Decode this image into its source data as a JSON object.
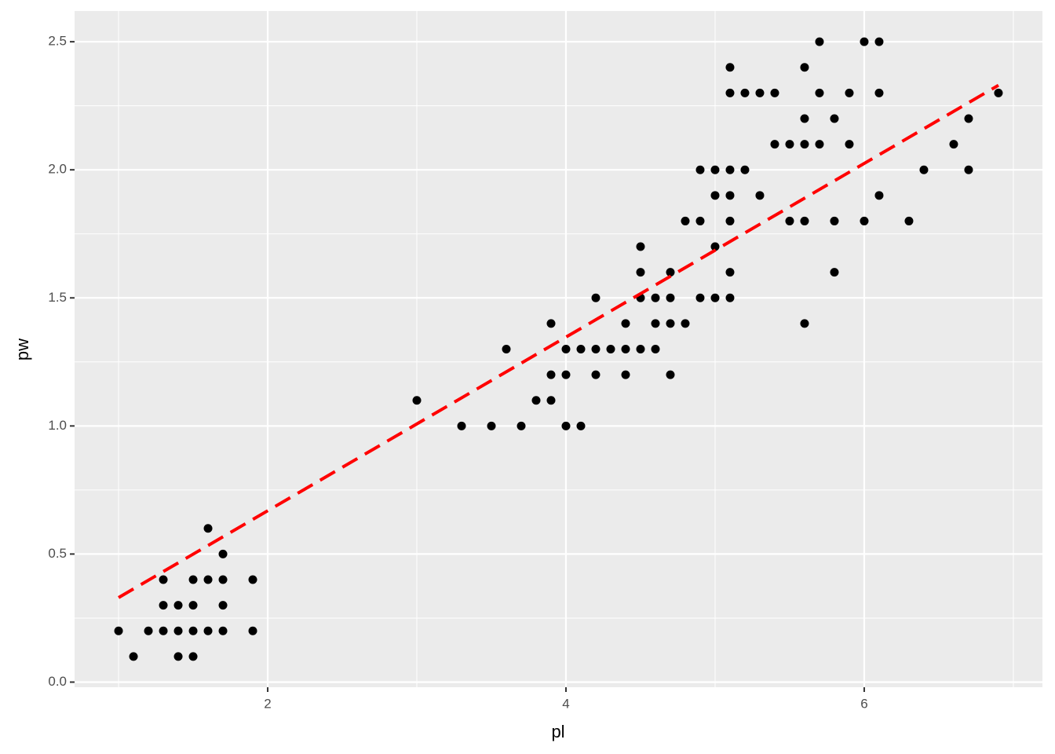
{
  "chart_data": {
    "type": "scatter",
    "xlabel": "pl",
    "ylabel": "pw",
    "x": [
      1,
      1.1,
      1.2,
      1.3,
      1.3,
      1.3,
      1.4,
      1.4,
      1.4,
      1.5,
      1.5,
      1.5,
      1.5,
      1.6,
      1.6,
      1.6,
      1.7,
      1.7,
      1.7,
      1.7,
      1.9,
      1.9,
      3,
      3.3,
      3.5,
      3.6,
      3.7,
      3.8,
      3.9,
      3.9,
      3.9,
      4,
      4,
      4,
      4.1,
      4.1,
      4.2,
      4.2,
      4.2,
      4.3,
      4.4,
      4.4,
      4.4,
      4.5,
      4.5,
      4.5,
      4.5,
      4.6,
      4.6,
      4.6,
      4.7,
      4.7,
      4.7,
      4.7,
      4.8,
      4.8,
      4.9,
      4.9,
      4.9,
      5,
      5,
      5,
      5,
      5.1,
      5.1,
      5.1,
      5.1,
      5.1,
      5.1,
      5.1,
      5.2,
      5.2,
      5.3,
      5.3,
      5.4,
      5.4,
      5.5,
      5.5,
      5.6,
      5.6,
      5.6,
      5.6,
      5.6,
      5.7,
      5.7,
      5.7,
      5.8,
      5.8,
      5.8,
      5.9,
      5.9,
      6,
      6,
      6.1,
      6.1,
      6.1,
      6.3,
      6.4,
      6.6,
      6.7,
      6.7,
      6.9
    ],
    "values": [
      0.2,
      0.1,
      0.2,
      0.2,
      0.3,
      0.4,
      0.2,
      0.3,
      0.1,
      0.2,
      0.3,
      0.4,
      0.1,
      0.2,
      0.4,
      0.6,
      0.2,
      0.3,
      0.4,
      0.5,
      0.2,
      0.4,
      1.1,
      1.0,
      1.0,
      1.3,
      1.0,
      1.1,
      1.4,
      1.2,
      1.1,
      1.3,
      1.2,
      1.0,
      1.0,
      1.3,
      1.5,
      1.3,
      1.2,
      1.3,
      1.4,
      1.3,
      1.2,
      1.7,
      1.6,
      1.5,
      1.3,
      1.5,
      1.4,
      1.3,
      1.6,
      1.5,
      1.4,
      1.2,
      1.8,
      1.4,
      2.0,
      1.8,
      1.5,
      2.0,
      1.9,
      1.7,
      1.5,
      2.4,
      2.3,
      2.0,
      1.9,
      1.8,
      1.6,
      1.5,
      2.3,
      2.0,
      2.3,
      1.9,
      2.3,
      2.1,
      2.1,
      1.8,
      2.4,
      2.2,
      2.1,
      1.8,
      1.4,
      2.5,
      2.3,
      2.1,
      2.2,
      1.8,
      1.6,
      2.3,
      2.1,
      2.5,
      1.8,
      2.5,
      2.3,
      1.9,
      1.8,
      2.0,
      2.1,
      2.2,
      2.0,
      2.3
    ],
    "color": "#000000",
    "trend": {
      "x": [
        1,
        6.9
      ],
      "y": [
        0.33,
        2.33
      ],
      "color": "#ff0000",
      "dash": true
    },
    "xlim": [
      0.705,
      7.195
    ],
    "ylim": [
      -0.02,
      2.62
    ],
    "xticks": [
      2,
      4,
      6
    ],
    "yticks": [
      {
        "value": 0,
        "label": "0.0"
      },
      0.5,
      {
        "value": 1,
        "label": "1.0"
      },
      1.5,
      {
        "value": 2,
        "label": "2.0"
      },
      2.5
    ],
    "xminor": [
      1,
      3,
      5,
      7
    ],
    "yminor": [
      0.25,
      0.75,
      1.25,
      1.75,
      2.25
    ],
    "grid": true
  }
}
